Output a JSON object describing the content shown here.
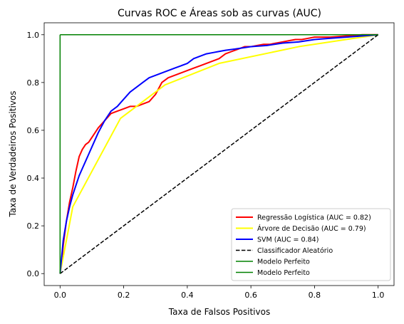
{
  "chart_data": {
    "type": "line",
    "title": "Curvas ROC e Áreas sob as curvas (AUC)",
    "xlabel": "Taxa de Falsos Positivos",
    "ylabel": "Taxa de Verdadeiros Positivos",
    "xlim": [
      -0.05,
      1.05
    ],
    "ylim": [
      -0.05,
      1.05
    ],
    "xticks": [
      0.0,
      0.2,
      0.4,
      0.6,
      0.8,
      1.0
    ],
    "yticks": [
      0.0,
      0.2,
      0.4,
      0.6,
      0.8,
      1.0
    ],
    "xtick_labels": [
      "0.0",
      "0.2",
      "0.4",
      "0.6",
      "0.8",
      "1.0"
    ],
    "ytick_labels": [
      "0.0",
      "0.2",
      "0.4",
      "0.6",
      "0.8",
      "1.0"
    ],
    "grid": false,
    "legend_position": "lower-right",
    "series": [
      {
        "name": "Regressão Logística (AUC = 0.82)",
        "color": "#ff0000",
        "width": 2,
        "dash": "solid",
        "x": [
          0,
          0.005,
          0.01,
          0.02,
          0.03,
          0.04,
          0.05,
          0.06,
          0.07,
          0.08,
          0.09,
          0.1,
          0.12,
          0.14,
          0.16,
          0.18,
          0.2,
          0.22,
          0.24,
          0.26,
          0.28,
          0.3,
          0.32,
          0.34,
          0.36,
          0.38,
          0.4,
          0.42,
          0.44,
          0.46,
          0.48,
          0.5,
          0.52,
          0.54,
          0.56,
          0.58,
          0.6,
          0.62,
          0.64,
          0.66,
          0.68,
          0.7,
          0.72,
          0.74,
          0.76,
          0.78,
          0.8,
          0.85,
          0.9,
          0.95,
          1.0
        ],
        "y": [
          0,
          0.05,
          0.12,
          0.22,
          0.3,
          0.36,
          0.43,
          0.49,
          0.52,
          0.54,
          0.55,
          0.57,
          0.61,
          0.64,
          0.67,
          0.68,
          0.69,
          0.7,
          0.7,
          0.71,
          0.72,
          0.75,
          0.8,
          0.82,
          0.83,
          0.84,
          0.85,
          0.86,
          0.87,
          0.88,
          0.89,
          0.9,
          0.92,
          0.93,
          0.94,
          0.95,
          0.95,
          0.955,
          0.96,
          0.96,
          0.965,
          0.97,
          0.975,
          0.98,
          0.98,
          0.985,
          0.99,
          0.99,
          0.995,
          1.0,
          1.0
        ]
      },
      {
        "name": "Árvore de Decisão (AUC = 0.79)",
        "color": "#ffff00",
        "width": 2,
        "dash": "solid",
        "x": [
          0,
          0.04,
          0.19,
          0.33,
          0.5,
          0.75,
          1.0
        ],
        "y": [
          0,
          0.28,
          0.65,
          0.79,
          0.88,
          0.95,
          1.0
        ]
      },
      {
        "name": "SVM (AUC = 0.84)",
        "color": "#0000ff",
        "width": 2,
        "dash": "solid",
        "x": [
          0,
          0.005,
          0.01,
          0.02,
          0.03,
          0.04,
          0.05,
          0.06,
          0.07,
          0.08,
          0.09,
          0.1,
          0.12,
          0.14,
          0.16,
          0.18,
          0.2,
          0.22,
          0.24,
          0.26,
          0.28,
          0.3,
          0.32,
          0.34,
          0.36,
          0.38,
          0.4,
          0.42,
          0.44,
          0.46,
          0.48,
          0.5,
          0.52,
          0.55,
          0.6,
          0.65,
          0.7,
          0.75,
          0.8,
          0.85,
          0.9,
          0.95,
          1.0
        ],
        "y": [
          0,
          0.07,
          0.14,
          0.22,
          0.28,
          0.33,
          0.37,
          0.41,
          0.44,
          0.47,
          0.5,
          0.53,
          0.59,
          0.64,
          0.68,
          0.7,
          0.73,
          0.76,
          0.78,
          0.8,
          0.82,
          0.83,
          0.84,
          0.85,
          0.86,
          0.87,
          0.88,
          0.9,
          0.91,
          0.92,
          0.925,
          0.93,
          0.935,
          0.94,
          0.95,
          0.955,
          0.965,
          0.97,
          0.98,
          0.985,
          0.99,
          0.995,
          1.0
        ]
      },
      {
        "name": "Classificador Aleatório",
        "color": "#000000",
        "width": 1.5,
        "dash": "dashed",
        "x": [
          0,
          1
        ],
        "y": [
          0,
          1
        ]
      },
      {
        "name": "Modelo Perfeito",
        "color": "#008000",
        "width": 1.5,
        "dash": "solid",
        "x": [
          0,
          0
        ],
        "y": [
          0,
          1
        ]
      },
      {
        "name": "Modelo Perfeito",
        "color": "#008000",
        "width": 1.5,
        "dash": "solid",
        "x": [
          0,
          1
        ],
        "y": [
          1,
          1
        ]
      }
    ]
  }
}
